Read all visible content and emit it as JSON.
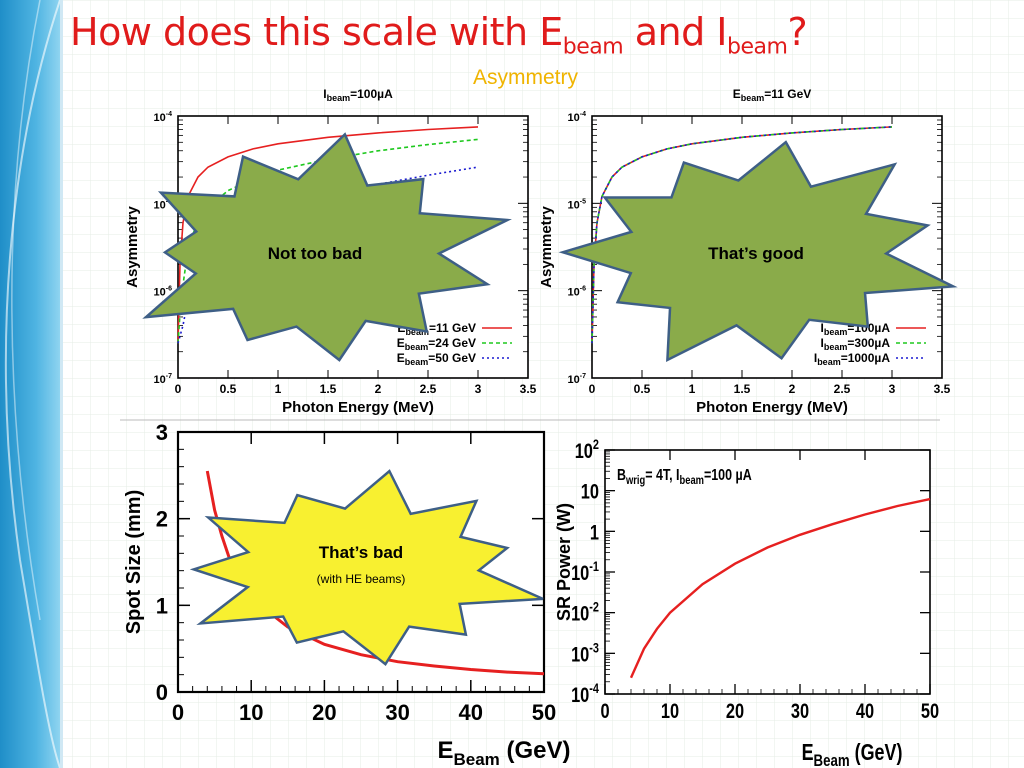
{
  "slide": {
    "title_parts": [
      "How does this scale with E",
      "beam",
      " and I",
      "beam",
      "?"
    ],
    "subtitle": "Asymmetry"
  },
  "colors": {
    "red": "#e62020",
    "green": "#1ec81e",
    "blue": "#1a1ad0",
    "star_green": "#8aab4a",
    "star_yellow": "#f8f030",
    "star_outline": "#3e5f86",
    "title": "#e01b1b"
  },
  "chart_data": [
    {
      "type": "line",
      "title_parts": [
        "I",
        "beam",
        "=100µA"
      ],
      "xlabel": "Photon Energy (MeV)",
      "ylabel": "Asymmetry",
      "xlim": [
        0,
        3.5
      ],
      "ylim": [
        1e-07,
        0.0001
      ],
      "yscale": "log",
      "x_ticks": [
        "0",
        "0.5",
        "1",
        "1.5",
        "2",
        "2.5",
        "3",
        "3.5"
      ],
      "y_ticks": [
        {
          "base": "10",
          "exp": "-7"
        },
        {
          "base": "10",
          "exp": "-6"
        },
        {
          "base": "10",
          "exp": "-5"
        },
        {
          "base": "10",
          "exp": "-4"
        }
      ],
      "series": [
        {
          "name": "Ebeam=11 GeV",
          "name_parts": [
            "E",
            "beam",
            "=11 GeV"
          ],
          "color": "#e62020",
          "dash": "",
          "x": [
            0.0,
            0.02,
            0.05,
            0.1,
            0.2,
            0.3,
            0.5,
            0.75,
            1.0,
            1.5,
            2.0,
            2.5,
            3.0
          ],
          "y": [
            2.5e-07,
            2e-06,
            6e-06,
            1.2e-05,
            2e-05,
            2.6e-05,
            3.4e-05,
            4.2e-05,
            4.8e-05,
            5.7e-05,
            6.4e-05,
            7e-05,
            7.5e-05
          ]
        },
        {
          "name": "Ebeam=24 GeV",
          "name_parts": [
            "E",
            "beam",
            "=24 GeV"
          ],
          "color": "#1ec81e",
          "dash": "4,3",
          "x": [
            0.0,
            0.03,
            0.1,
            0.2,
            0.3,
            0.5,
            0.75,
            1.0,
            1.5,
            2.0,
            2.5,
            3.0
          ],
          "y": [
            2.5e-07,
            8e-07,
            3e-06,
            6.5e-06,
            9e-06,
            1.4e-05,
            1.9e-05,
            2.4e-05,
            3.2e-05,
            4e-05,
            4.7e-05,
            5.4e-05
          ]
        },
        {
          "name": "Ebeam=50 GeV",
          "name_parts": [
            "E",
            "beam",
            "=50 GeV"
          ],
          "color": "#1a1ad0",
          "dash": "2,3",
          "x": [
            0.0,
            0.05,
            0.1,
            0.2,
            0.3,
            0.5,
            0.75,
            1.0,
            1.5,
            2.0,
            2.5,
            3.0
          ],
          "y": [
            2.5e-07,
            4e-07,
            8e-07,
            1.8e-06,
            2.8e-06,
            4.5e-06,
            6.5e-06,
            8.5e-06,
            1.25e-05,
            1.65e-05,
            2.1e-05,
            2.6e-05
          ]
        }
      ],
      "legend_position": "bottom-right",
      "callout": "Not too bad"
    },
    {
      "type": "line",
      "title_parts": [
        "E",
        "beam",
        "=11 GeV"
      ],
      "xlabel": "Photon Energy (MeV)",
      "ylabel": "Asymmetry",
      "xlim": [
        0,
        3.5
      ],
      "ylim": [
        1e-07,
        0.0001
      ],
      "yscale": "log",
      "x_ticks": [
        "0",
        "0.5",
        "1",
        "1.5",
        "2",
        "2.5",
        "3",
        "3.5"
      ],
      "y_ticks": [
        {
          "base": "10",
          "exp": "-7"
        },
        {
          "base": "10",
          "exp": "-6"
        },
        {
          "base": "10",
          "exp": "-5"
        },
        {
          "base": "10",
          "exp": "-4"
        }
      ],
      "series": [
        {
          "name": "Ibeam=100µA",
          "name_parts": [
            "I",
            "beam",
            "=100µA"
          ],
          "color": "#e62020",
          "dash": "",
          "x": [
            0.0,
            0.02,
            0.05,
            0.1,
            0.2,
            0.3,
            0.5,
            0.75,
            1.0,
            1.5,
            2.0,
            2.5,
            3.0
          ],
          "y": [
            2.5e-07,
            2e-06,
            6e-06,
            1.2e-05,
            2e-05,
            2.6e-05,
            3.4e-05,
            4.2e-05,
            4.8e-05,
            5.7e-05,
            6.4e-05,
            7e-05,
            7.5e-05
          ]
        },
        {
          "name": "Ibeam=300µA",
          "name_parts": [
            "I",
            "beam",
            "=300µA"
          ],
          "color": "#1ec81e",
          "dash": "4,3",
          "x": [
            0.0,
            0.02,
            0.05,
            0.1,
            0.2,
            0.3,
            0.5,
            0.75,
            1.0,
            1.5,
            2.0,
            2.5,
            3.0
          ],
          "y": [
            2.5e-07,
            2e-06,
            6e-06,
            1.2e-05,
            2e-05,
            2.6e-05,
            3.4e-05,
            4.2e-05,
            4.8e-05,
            5.7e-05,
            6.4e-05,
            7e-05,
            7.5e-05
          ]
        },
        {
          "name": "Ibeam=1000µA",
          "name_parts": [
            "I",
            "beam",
            "=1000µA"
          ],
          "color": "#1a1ad0",
          "dash": "2,3",
          "x": [
            0.0,
            0.02,
            0.05,
            0.1,
            0.2,
            0.3,
            0.5,
            0.75,
            1.0,
            1.5,
            2.0,
            2.5,
            3.0
          ],
          "y": [
            2.5e-07,
            2e-06,
            6e-06,
            1.2e-05,
            2e-05,
            2.6e-05,
            3.4e-05,
            4.2e-05,
            4.8e-05,
            5.7e-05,
            6.4e-05,
            7e-05,
            7.5e-05
          ]
        }
      ],
      "legend_position": "bottom-right",
      "callout": "That’s good"
    },
    {
      "type": "line",
      "xlabel_parts": [
        "E",
        "Beam",
        " (GeV)"
      ],
      "ylabel": "Spot Size (mm)",
      "xlim": [
        0,
        50
      ],
      "ylim": [
        0,
        3
      ],
      "x_ticks": [
        "0",
        "10",
        "20",
        "30",
        "40",
        "50"
      ],
      "y_ticks": [
        "0",
        "1",
        "2",
        "3"
      ],
      "series": [
        {
          "color": "#e62020",
          "dash": "",
          "x": [
            4,
            5,
            6,
            7,
            8,
            10,
            12,
            15,
            20,
            25,
            30,
            35,
            40,
            45,
            50
          ],
          "y": [
            2.55,
            2.1,
            1.8,
            1.55,
            1.4,
            1.15,
            0.95,
            0.75,
            0.55,
            0.43,
            0.35,
            0.3,
            0.26,
            0.23,
            0.21
          ]
        }
      ],
      "callout": "That’s bad",
      "callout_note": "(with HE beams)"
    },
    {
      "type": "line",
      "annotation_parts": [
        "B",
        "wrig",
        "= 4T, I",
        "beam",
        "=100 µA"
      ],
      "xlabel_parts": [
        "E",
        "Beam",
        " (GeV)"
      ],
      "ylabel": "SR Power (W)",
      "xlim": [
        0,
        50
      ],
      "ylim": [
        0.0001,
        100
      ],
      "yscale": "log",
      "x_ticks": [
        "0",
        "10",
        "20",
        "30",
        "40",
        "50"
      ],
      "y_ticks": [
        {
          "base": "10",
          "exp": "-4"
        },
        {
          "base": "10",
          "exp": "-3"
        },
        {
          "base": "10",
          "exp": "-2"
        },
        {
          "base": "10",
          "exp": "-1"
        },
        {
          "base": "1",
          "exp": ""
        },
        {
          "base": "10",
          "exp": ""
        },
        {
          "base": "10",
          "exp": "2"
        }
      ],
      "series": [
        {
          "color": "#e62020",
          "dash": "",
          "x": [
            4,
            6,
            8,
            10,
            15,
            20,
            25,
            30,
            35,
            40,
            45,
            50
          ],
          "y": [
            0.00025,
            0.0013,
            0.004,
            0.01,
            0.05,
            0.16,
            0.4,
            0.82,
            1.5,
            2.6,
            4.2,
            6.2
          ]
        }
      ]
    }
  ]
}
